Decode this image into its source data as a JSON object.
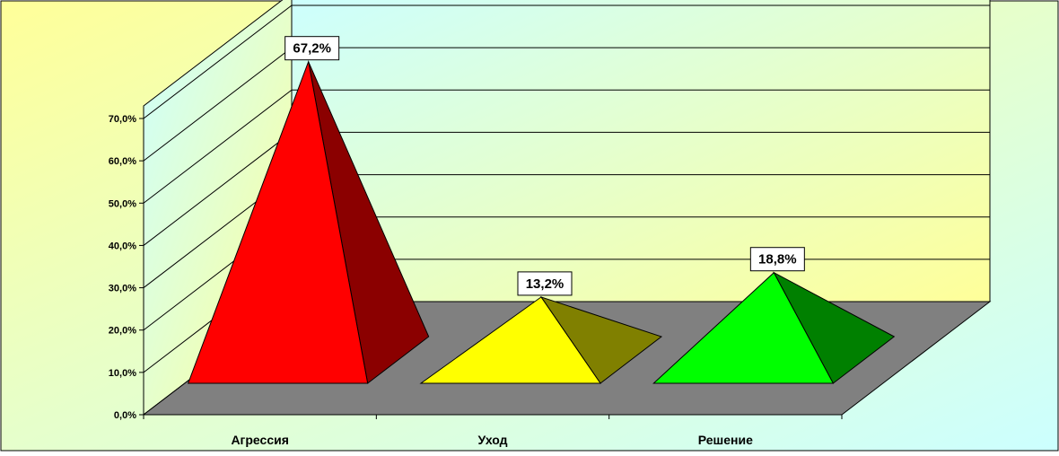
{
  "chart_data": {
    "type": "bar",
    "shape": "pyramid-3d",
    "categories": [
      "Агрессия",
      "Уход",
      "Решение"
    ],
    "series": [
      {
        "values": [
          67.2,
          13.2,
          18.8
        ],
        "labels": [
          "67,2%",
          "13,2%",
          "18,8%"
        ],
        "colors": [
          "#ff0000",
          "#ffff00",
          "#00ff00"
        ],
        "side_colors": [
          "#8b0000",
          "#808000",
          "#008000"
        ]
      }
    ],
    "ylim": [
      0,
      70
    ],
    "y_ticks": [
      "0,0%",
      "10,0%",
      "20,0%",
      "30,0%",
      "40,0%",
      "50,0%",
      "60,0%",
      "70,0%"
    ],
    "grid": true,
    "legend": "none",
    "wall_gradient": [
      "#ffff99",
      "#ccffff"
    ],
    "floor_color": "#808080"
  }
}
